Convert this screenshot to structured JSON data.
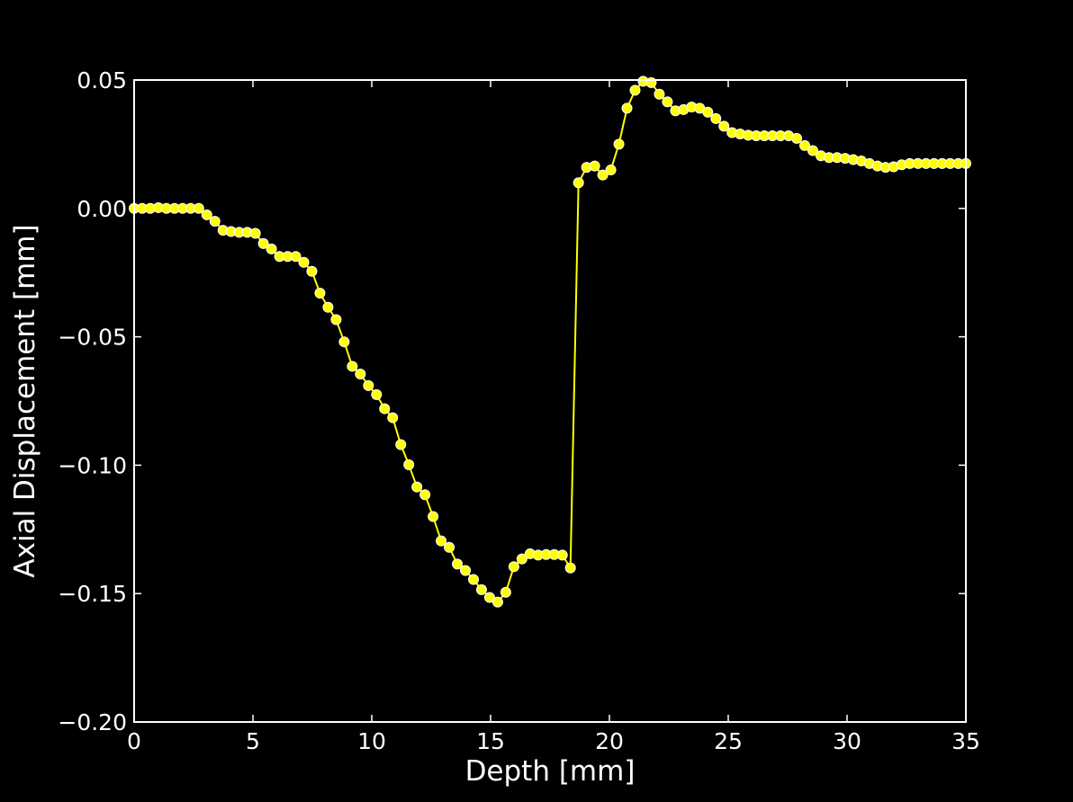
{
  "chart_data": {
    "type": "line",
    "title": "",
    "xlabel": "Depth [mm]",
    "ylabel": "Axial Displacement [mm]",
    "xlim": [
      0,
      35
    ],
    "ylim": [
      -0.2,
      0.05
    ],
    "xticks": [
      0,
      5,
      10,
      15,
      20,
      25,
      30,
      35
    ],
    "xtick_labels": [
      "0",
      "5",
      "10",
      "15",
      "20",
      "25",
      "30",
      "35"
    ],
    "yticks": [
      -0.2,
      -0.15,
      -0.1,
      -0.05,
      0.0,
      0.05
    ],
    "ytick_labels": [
      "−0.20",
      "−0.15",
      "−0.10",
      "−0.05",
      "0.00",
      "0.05"
    ],
    "grid": false,
    "background": "#000000",
    "line_color": "#ffff00",
    "marker_fill": "#ffff00",
    "marker_edge": "#ffffff",
    "series": [
      {
        "x": [
          0.0,
          0.34,
          0.68,
          1.02,
          1.36,
          1.7,
          2.04,
          2.38,
          2.72,
          3.06,
          3.4,
          3.74,
          4.08,
          4.42,
          4.76,
          5.1,
          5.44,
          5.78,
          6.12,
          6.46,
          6.8,
          7.14,
          7.48,
          7.82,
          8.16,
          8.5,
          8.84,
          9.18,
          9.52,
          9.86,
          10.2,
          10.54,
          10.88,
          11.22,
          11.56,
          11.9,
          12.24,
          12.58,
          12.92,
          13.26,
          13.6,
          13.94,
          14.28,
          14.62,
          14.96,
          15.3,
          15.64,
          15.98,
          16.32,
          16.66,
          17.0,
          17.34,
          17.68,
          18.02,
          18.36,
          18.7,
          19.04,
          19.38,
          19.72,
          20.06,
          20.4,
          20.74,
          21.08,
          21.42,
          21.76,
          22.1,
          22.44,
          22.78,
          23.12,
          23.46,
          23.8,
          24.14,
          24.48,
          24.82,
          25.16,
          25.5,
          25.84,
          26.18,
          26.52,
          26.86,
          27.2,
          27.54,
          27.88,
          28.22,
          28.56,
          28.9,
          29.24,
          29.58,
          29.92,
          30.26,
          30.6,
          30.94,
          31.28,
          31.62,
          31.96,
          32.3,
          32.64,
          32.98,
          33.32,
          33.66,
          34.0,
          34.34,
          34.68,
          35.0
        ],
        "y": [
          0.0,
          0.0,
          0.0,
          0.0003,
          0.0,
          0.0,
          0.0,
          0.0,
          0.0,
          -0.0025,
          -0.005,
          -0.0085,
          -0.009,
          -0.0093,
          -0.0093,
          -0.0097,
          -0.0137,
          -0.0158,
          -0.0187,
          -0.0187,
          -0.0187,
          -0.021,
          -0.0245,
          -0.033,
          -0.0385,
          -0.0433,
          -0.052,
          -0.0615,
          -0.0645,
          -0.069,
          -0.0725,
          -0.078,
          -0.0815,
          -0.092,
          -0.0998,
          -0.1085,
          -0.1115,
          -0.12,
          -0.1295,
          -0.132,
          -0.1385,
          -0.141,
          -0.1445,
          -0.1485,
          -0.1515,
          -0.1533,
          -0.1495,
          -0.1395,
          -0.1365,
          -0.1345,
          -0.135,
          -0.1348,
          -0.1348,
          -0.135,
          -0.14,
          0.01,
          0.016,
          0.0165,
          0.013,
          0.015,
          0.025,
          0.039,
          0.046,
          0.0495,
          0.049,
          0.0445,
          0.0415,
          0.038,
          0.0385,
          0.0395,
          0.039,
          0.0375,
          0.035,
          0.032,
          0.0295,
          0.029,
          0.0285,
          0.0283,
          0.0283,
          0.0283,
          0.0283,
          0.0283,
          0.0273,
          0.0245,
          0.0225,
          0.0205,
          0.0198,
          0.0198,
          0.0195,
          0.019,
          0.0185,
          0.0175,
          0.0165,
          0.016,
          0.0162,
          0.017,
          0.0175,
          0.0175,
          0.0175,
          0.0175,
          0.0175,
          0.0175,
          0.0175,
          0.0175
        ]
      }
    ]
  }
}
